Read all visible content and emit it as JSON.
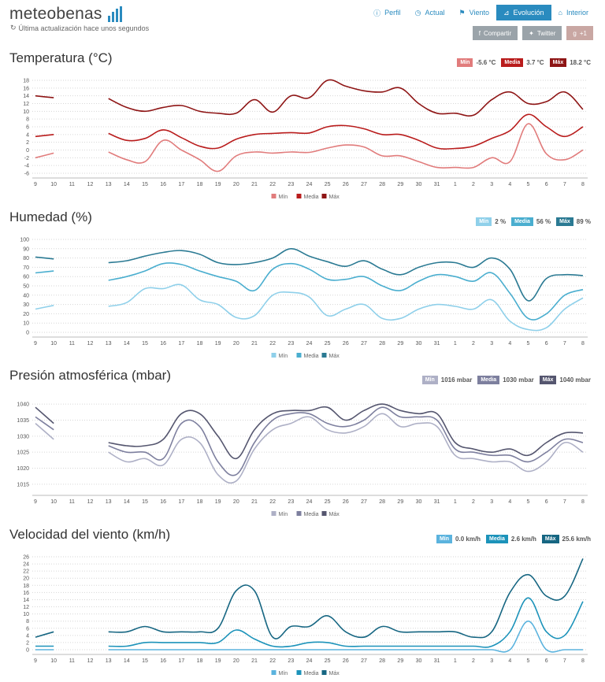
{
  "brand": {
    "name": "meteobenas",
    "updated": "Última actualización hace unos segundos",
    "logo_color": "#2a8bbf"
  },
  "nav": [
    {
      "label": "Perfil",
      "icon": "info-icon"
    },
    {
      "label": "Actual",
      "icon": "clock-icon"
    },
    {
      "label": "Viento",
      "icon": "flag-icon"
    },
    {
      "label": "Evolución",
      "icon": "area-chart-icon",
      "active": true
    },
    {
      "label": "Interior",
      "icon": "home-icon"
    }
  ],
  "share": [
    {
      "label": "Compartir",
      "icon": "facebook-icon"
    },
    {
      "label": "Twitter",
      "icon": "twitter-icon"
    },
    {
      "label": "+1",
      "icon": "google-plus-icon"
    }
  ],
  "chart_data": [
    {
      "type": "line",
      "title": "Temperatura (°C)",
      "x": [
        "9",
        "10",
        "11",
        "12",
        "13",
        "14",
        "15",
        "16",
        "17",
        "18",
        "19",
        "20",
        "21",
        "22",
        "23",
        "24",
        "25",
        "26",
        "27",
        "28",
        "29",
        "30",
        "31",
        "1",
        "2",
        "3",
        "4",
        "5",
        "6",
        "7",
        "8"
      ],
      "ylim": [
        -6,
        18
      ],
      "yticks": [
        -6,
        -4,
        -2,
        0,
        2,
        4,
        6,
        8,
        10,
        12,
        14,
        16,
        18
      ],
      "grid": true,
      "legend": "bottom",
      "badges": [
        {
          "tag": "Mín",
          "value": "-5.6 °C"
        },
        {
          "tag": "Media",
          "value": "3.7 °C"
        },
        {
          "tag": "Máx",
          "value": "18.2 °C"
        }
      ],
      "series": [
        {
          "name": "Mín",
          "color": "#e17c7c",
          "values": [
            -2,
            -0.8,
            null,
            null,
            -0.5,
            -2.5,
            -3,
            2.5,
            0,
            -2.5,
            -5.5,
            -1.5,
            -0.5,
            -0.8,
            -0.5,
            -0.6,
            0.5,
            1.3,
            0.8,
            -1.5,
            -1.5,
            -3,
            -4.5,
            -4.5,
            -4.5,
            -2,
            -3,
            6.8,
            -1,
            -2.5,
            0
          ]
        },
        {
          "name": "Media",
          "color": "#b91c1c",
          "values": [
            3.5,
            4,
            null,
            null,
            4.3,
            2.5,
            3,
            5.2,
            3.2,
            1,
            0.5,
            2.8,
            4,
            4.3,
            4.5,
            4.4,
            6,
            6.3,
            5.5,
            4,
            4,
            2.5,
            0.5,
            0.4,
            1,
            3,
            5,
            9.2,
            6,
            3.5,
            6
          ]
        },
        {
          "name": "Máx",
          "color": "#8e1515",
          "values": [
            14,
            13.5,
            null,
            null,
            13.3,
            11,
            10,
            11,
            11.5,
            10,
            9.5,
            9.5,
            13,
            9.8,
            14,
            13.5,
            18,
            16.5,
            15.3,
            15,
            16,
            12,
            9.5,
            9.5,
            9,
            13,
            15,
            12,
            12.5,
            15,
            10.5
          ]
        }
      ]
    },
    {
      "type": "line",
      "title": "Humedad (%)",
      "x": [
        "9",
        "10",
        "11",
        "12",
        "13",
        "14",
        "15",
        "16",
        "17",
        "18",
        "19",
        "20",
        "21",
        "22",
        "23",
        "24",
        "25",
        "26",
        "27",
        "28",
        "29",
        "30",
        "31",
        "1",
        "2",
        "3",
        "4",
        "5",
        "6",
        "7",
        "8"
      ],
      "ylim": [
        0,
        100
      ],
      "yticks": [
        0,
        10,
        20,
        30,
        40,
        50,
        60,
        70,
        80,
        90,
        100
      ],
      "grid": true,
      "legend": "bottom",
      "badges": [
        {
          "tag": "Mín",
          "value": "2 %"
        },
        {
          "tag": "Media",
          "value": "56 %"
        },
        {
          "tag": "Máx",
          "value": "89 %"
        }
      ],
      "series": [
        {
          "name": "Mín",
          "color": "#8fd0ea",
          "values": [
            25,
            29,
            null,
            null,
            28,
            32,
            47,
            47,
            51,
            35,
            30,
            16,
            18,
            40,
            43,
            38,
            18,
            25,
            30,
            15,
            15,
            25,
            30,
            28,
            25,
            35,
            12,
            3,
            5,
            25,
            37
          ]
        },
        {
          "name": "Media",
          "color": "#4aaecf",
          "values": [
            64,
            66,
            null,
            null,
            56,
            60,
            66,
            74,
            73,
            66,
            60,
            55,
            45,
            68,
            74,
            68,
            57,
            57,
            60,
            50,
            45,
            55,
            62,
            60,
            55,
            64,
            42,
            15,
            20,
            40,
            46
          ]
        },
        {
          "name": "Máx",
          "color": "#2b7a93",
          "values": [
            81,
            79,
            null,
            null,
            75,
            77,
            82,
            86,
            88,
            84,
            75,
            73,
            75,
            80,
            90,
            82,
            76,
            71,
            77,
            68,
            62,
            70,
            75,
            75,
            70,
            80,
            68,
            34,
            58,
            62,
            61
          ]
        }
      ]
    },
    {
      "type": "line",
      "title": "Presión atmosférica (mbar)",
      "x": [
        "9",
        "10",
        "11",
        "12",
        "13",
        "14",
        "15",
        "16",
        "17",
        "18",
        "19",
        "20",
        "21",
        "22",
        "23",
        "24",
        "25",
        "26",
        "27",
        "28",
        "29",
        "30",
        "31",
        "1",
        "2",
        "3",
        "4",
        "5",
        "6",
        "7",
        "8"
      ],
      "ylim": [
        1013,
        1042
      ],
      "yticks": [
        1015,
        1020,
        1025,
        1030,
        1035,
        1040
      ],
      "grid": true,
      "legend": "bottom",
      "badges": [
        {
          "tag": "Mín",
          "value": "1016 mbar"
        },
        {
          "tag": "Media",
          "value": "1030 mbar"
        },
        {
          "tag": "Máx",
          "value": "1040 mbar"
        }
      ],
      "series": [
        {
          "name": "Mín",
          "color": "#aeb0c6",
          "values": [
            1034,
            1029,
            null,
            null,
            1025,
            1022,
            1023,
            1021,
            1029,
            1028,
            1018,
            1016,
            1026,
            1032,
            1034,
            1036,
            1032,
            1031,
            1033,
            1037,
            1033,
            1034,
            1033,
            1024,
            1023,
            1022,
            1022,
            1019,
            1022,
            1028,
            1025
          ]
        },
        {
          "name": "Media",
          "color": "#7d7f9e",
          "values": [
            1036,
            1032,
            null,
            null,
            1027,
            1025,
            1025,
            1023,
            1034,
            1033,
            1022,
            1018,
            1028,
            1035,
            1037,
            1037,
            1034,
            1033,
            1035,
            1039,
            1036,
            1036,
            1035,
            1026,
            1025,
            1024,
            1024,
            1022,
            1025,
            1029,
            1028
          ]
        },
        {
          "name": "Máx",
          "color": "#55566f",
          "values": [
            1039,
            1034,
            null,
            null,
            1028,
            1027,
            1027,
            1029,
            1037,
            1037,
            1030,
            1023,
            1032,
            1037,
            1038,
            1038,
            1039,
            1035,
            1038,
            1040,
            1038,
            1037,
            1037,
            1028,
            1026,
            1025,
            1026,
            1024,
            1028,
            1031,
            1031
          ]
        }
      ]
    },
    {
      "type": "line",
      "title": "Velocidad del viento (km/h)",
      "x": [
        "9",
        "10",
        "11",
        "12",
        "13",
        "14",
        "15",
        "16",
        "17",
        "18",
        "19",
        "20",
        "21",
        "22",
        "23",
        "24",
        "25",
        "26",
        "27",
        "28",
        "29",
        "30",
        "31",
        "1",
        "2",
        "3",
        "4",
        "5",
        "6",
        "7",
        "8"
      ],
      "ylim": [
        0,
        26
      ],
      "yticks": [
        0,
        2,
        4,
        6,
        8,
        10,
        12,
        14,
        16,
        18,
        20,
        22,
        24,
        26
      ],
      "grid": true,
      "legend": "bottom",
      "badges": [
        {
          "tag": "Mín",
          "value": "0.0 km/h"
        },
        {
          "tag": "Media",
          "value": "2.6 km/h"
        },
        {
          "tag": "Máx",
          "value": "25.6 km/h"
        }
      ],
      "series": [
        {
          "name": "Mín",
          "color": "#5bb3de",
          "values": [
            0,
            0,
            null,
            null,
            0,
            0,
            0,
            0,
            0,
            0,
            0,
            0,
            0,
            0,
            0,
            0,
            0,
            0,
            0,
            0,
            0,
            0,
            0,
            0,
            0,
            0,
            0,
            8,
            0,
            0,
            0
          ]
        },
        {
          "name": "Media",
          "color": "#1c93ba",
          "values": [
            1,
            1,
            null,
            null,
            1,
            1,
            2,
            2,
            2,
            2,
            2,
            5.5,
            3,
            1,
            1,
            2,
            2,
            1,
            1,
            1,
            1,
            1,
            1,
            1,
            1,
            1,
            5,
            14.5,
            5,
            4,
            13.5
          ]
        },
        {
          "name": "Máx",
          "color": "#166682",
          "values": [
            3.5,
            5,
            null,
            null,
            5,
            5,
            6.5,
            5,
            5,
            5,
            6,
            16.5,
            16.5,
            3.5,
            6.5,
            6.5,
            9.5,
            5,
            3.5,
            6.5,
            5,
            5,
            5,
            5,
            3.5,
            5,
            16,
            21,
            15,
            15,
            25.5
          ]
        }
      ]
    }
  ]
}
